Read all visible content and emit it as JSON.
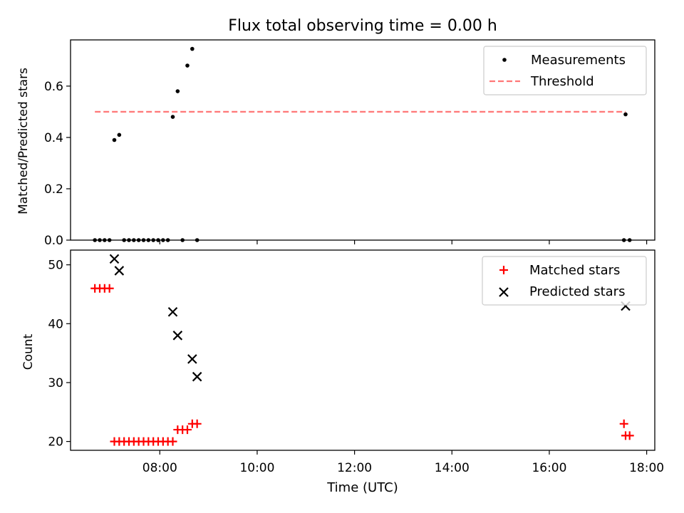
{
  "chart_data": [
    {
      "type": "scatter",
      "title": "Flux total observing time = 0.00 h",
      "xlabel": "",
      "ylabel": "Matched/Predicted stars",
      "xlim": [
        "06:10",
        "18:10"
      ],
      "ylim": [
        0,
        0.78
      ],
      "yticks": [
        0.0,
        0.2,
        0.4,
        0.6
      ],
      "legend_position": "top-right",
      "series": [
        {
          "name": "Measurements",
          "kind": "scatter",
          "marker": "dot",
          "color": "#000000",
          "x": [
            "06:40",
            "06:46",
            "06:52",
            "06:58",
            "07:04",
            "07:10",
            "07:16",
            "07:22",
            "07:28",
            "07:34",
            "07:40",
            "07:46",
            "07:52",
            "07:58",
            "08:04",
            "08:10",
            "08:16",
            "08:22",
            "08:28",
            "08:34",
            "08:40",
            "08:46",
            "17:32",
            "17:34",
            "17:39"
          ],
          "y": [
            0,
            0,
            0,
            0,
            0.39,
            0.41,
            0,
            0,
            0,
            0,
            0,
            0,
            0,
            0,
            0,
            0,
            0.48,
            0.58,
            0,
            0.68,
            0.745,
            0,
            0,
            0.49,
            0
          ]
        },
        {
          "name": "Threshold",
          "kind": "line",
          "style": "dashed",
          "color": "#ff7777",
          "x": [
            "06:40",
            "17:34"
          ],
          "y": [
            0.5,
            0.5
          ]
        }
      ]
    },
    {
      "type": "scatter",
      "title": "",
      "xlabel": "Time (UTC)",
      "ylabel": "Count",
      "xlim": [
        "06:10",
        "18:10"
      ],
      "ylim": [
        18.5,
        52.5
      ],
      "xticks": [
        "08:00",
        "10:00",
        "12:00",
        "14:00",
        "16:00",
        "18:00"
      ],
      "yticks": [
        20,
        30,
        40,
        50
      ],
      "legend_position": "top-right",
      "series": [
        {
          "name": "Matched stars",
          "kind": "scatter",
          "marker": "plus",
          "color": "#ff0000",
          "x": [
            "06:40",
            "06:46",
            "06:52",
            "06:58",
            "07:04",
            "07:10",
            "07:16",
            "07:22",
            "07:28",
            "07:34",
            "07:40",
            "07:46",
            "07:52",
            "07:58",
            "08:04",
            "08:10",
            "08:16",
            "08:22",
            "08:28",
            "08:34",
            "08:40",
            "08:46",
            "17:32",
            "17:34",
            "17:39"
          ],
          "y": [
            46,
            46,
            46,
            46,
            20,
            20,
            20,
            20,
            20,
            20,
            20,
            20,
            20,
            20,
            20,
            20,
            20,
            22,
            22,
            22,
            23,
            23,
            23,
            21,
            21
          ]
        },
        {
          "name": "Predicted stars",
          "kind": "scatter",
          "marker": "x",
          "color": "#000000",
          "x": [
            "07:04",
            "07:10",
            "08:16",
            "08:22",
            "08:40",
            "08:46",
            "17:34"
          ],
          "y": [
            51,
            49,
            42,
            38,
            34,
            31,
            43
          ]
        }
      ]
    }
  ]
}
